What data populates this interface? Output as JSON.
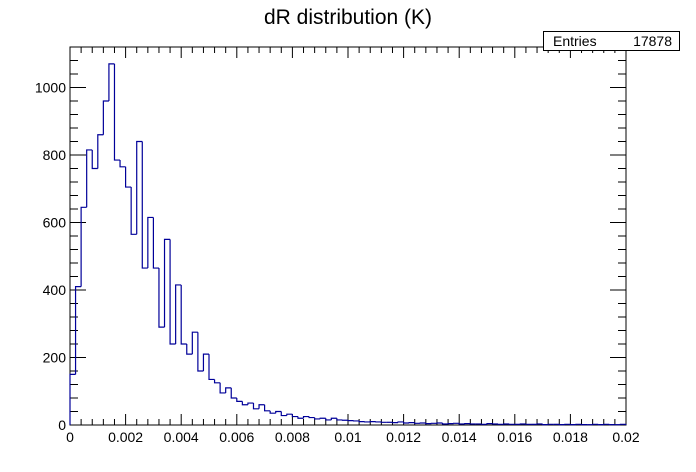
{
  "chart_data": {
    "type": "bar",
    "style": "step-histogram",
    "title": "dR distribution (K)",
    "xlabel": "",
    "ylabel": "",
    "xlim": [
      0,
      0.02
    ],
    "ylim": [
      0,
      1120
    ],
    "bin_width": 0.0002,
    "x_ticks": [
      "0",
      "0.002",
      "0.004",
      "0.006",
      "0.008",
      "0.01",
      "0.012",
      "0.014",
      "0.016",
      "0.018",
      "0.02"
    ],
    "y_ticks": [
      "0",
      "200",
      "400",
      "600",
      "800",
      "1000"
    ],
    "grid": false,
    "line_color": "#000099",
    "stats": {
      "label": "Entries",
      "value": "17878"
    },
    "values": [
      150,
      410,
      645,
      815,
      760,
      860,
      960,
      1070,
      785,
      765,
      705,
      565,
      840,
      465,
      615,
      465,
      290,
      550,
      240,
      415,
      240,
      210,
      275,
      160,
      210,
      135,
      125,
      95,
      110,
      80,
      70,
      60,
      65,
      48,
      60,
      42,
      35,
      40,
      28,
      32,
      25,
      20,
      25,
      22,
      18,
      20,
      15,
      20,
      15,
      14,
      13,
      12,
      10,
      9,
      10,
      9,
      8,
      8,
      7,
      9,
      6,
      7,
      5,
      6,
      4,
      5,
      6,
      3,
      4,
      5,
      3,
      4,
      3,
      3,
      2,
      4,
      3,
      2,
      3,
      2,
      2,
      3,
      2,
      2,
      3,
      1,
      2,
      2,
      1,
      2,
      1,
      2,
      1,
      1,
      2,
      1,
      2,
      1,
      1,
      2
    ]
  }
}
